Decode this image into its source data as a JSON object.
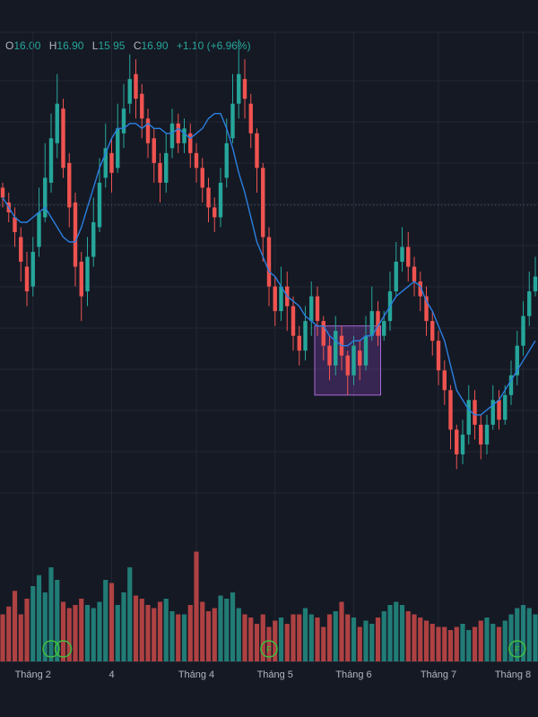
{
  "ohlc": {
    "open_label": "O",
    "open": "16.00",
    "high_label": "H",
    "high": "16.90",
    "low_label": "L",
    "low": "15.95",
    "close_label": "C",
    "close": "16.90",
    "change": "+1.10 (+6.96%)"
  },
  "colors": {
    "background": "#151924",
    "grid": "#232733",
    "up": "#26a69a",
    "down": "#ef5350",
    "ma": "#2a7fe0",
    "highlight_fill": "#7b3fa8",
    "highlight_border": "#a86ad6",
    "marker": "#3fbf3f",
    "axis_text": "#b2b5be"
  },
  "chart_data": {
    "type": "candlestick",
    "price_range": [
      10.6,
      20.4
    ],
    "volume_range": [
      0,
      100
    ],
    "x_ticks": [
      {
        "index": 5,
        "label": "Tháng 2"
      },
      {
        "index": 18,
        "label": "4"
      },
      {
        "index": 32,
        "label": "Tháng 4"
      },
      {
        "index": 45,
        "label": "Tháng 5"
      },
      {
        "index": 58,
        "label": "Tháng 6"
      },
      {
        "index": 72,
        "label": "Tháng 7"
      },
      {
        "index": 86,
        "label": "Tháng 8"
      }
    ],
    "markers": [
      {
        "index": 8,
        "label": ""
      },
      {
        "index": 10,
        "label": ""
      },
      {
        "index": 44,
        "label": "F"
      },
      {
        "index": 85,
        "label": "F"
      }
    ],
    "highlight_range": {
      "start_index": 52,
      "end_index": 62,
      "price_low": 12.4,
      "price_high": 13.8
    },
    "ma_series": [
      16.4,
      16.2,
      16.0,
      15.9,
      15.9,
      16.0,
      16.1,
      16.2,
      16.0,
      15.8,
      15.6,
      15.5,
      15.5,
      15.8,
      16.2,
      16.6,
      17.0,
      17.3,
      17.6,
      17.8,
      17.8,
      17.9,
      17.9,
      17.8,
      17.9,
      17.8,
      17.8,
      17.7,
      17.7,
      17.8,
      17.7,
      17.6,
      17.7,
      17.8,
      18.0,
      18.1,
      18.1,
      17.8,
      17.4,
      16.9,
      16.5,
      16.0,
      15.5,
      15.2,
      14.9,
      14.8,
      14.6,
      14.4,
      14.3,
      14.2,
      14.0,
      13.9,
      13.8,
      13.8,
      13.6,
      13.5,
      13.4,
      13.4,
      13.5,
      13.5,
      13.6,
      13.6,
      13.8,
      14.0,
      14.2,
      14.4,
      14.5,
      14.6,
      14.7,
      14.6,
      14.3,
      14.1,
      13.8,
      13.5,
      13.0,
      12.5,
      12.3,
      12.1,
      12.0,
      12.0,
      12.1,
      12.2,
      12.3,
      12.5,
      12.7,
      12.9,
      13.1,
      13.3,
      13.5
    ],
    "candles": [
      [
        16.6,
        16.4,
        16.7,
        16.2
      ],
      [
        16.3,
        16.1,
        16.5,
        15.9
      ],
      [
        16.0,
        15.7,
        16.2,
        15.4
      ],
      [
        15.6,
        15.1,
        15.8,
        14.7
      ],
      [
        15.0,
        14.5,
        15.3,
        14.2
      ],
      [
        14.6,
        15.3,
        15.6,
        14.4
      ],
      [
        15.4,
        16.1,
        16.6,
        15.2
      ],
      [
        16.0,
        16.8,
        17.5,
        15.9
      ],
      [
        16.7,
        17.6,
        18.1,
        16.5
      ],
      [
        17.5,
        18.3,
        18.9,
        17.2
      ],
      [
        18.2,
        17.0,
        18.4,
        16.8
      ],
      [
        17.1,
        16.2,
        17.3,
        15.8
      ],
      [
        16.3,
        15.0,
        16.5,
        14.6
      ],
      [
        15.1,
        14.4,
        15.3,
        13.9
      ],
      [
        14.5,
        15.2,
        15.6,
        14.2
      ],
      [
        15.2,
        15.9,
        16.4,
        15.0
      ],
      [
        15.8,
        16.7,
        17.2,
        15.7
      ],
      [
        16.8,
        17.4,
        17.9,
        16.6
      ],
      [
        17.3,
        16.9,
        17.6,
        16.5
      ],
      [
        17.0,
        17.8,
        18.3,
        16.9
      ],
      [
        17.7,
        18.2,
        18.7,
        17.4
      ],
      [
        18.3,
        18.8,
        19.3,
        18.1
      ],
      [
        18.9,
        18.4,
        19.2,
        18.0
      ],
      [
        18.5,
        18.0,
        18.7,
        17.6
      ],
      [
        18.0,
        17.5,
        18.2,
        17.2
      ],
      [
        17.6,
        17.1,
        17.8,
        16.7
      ],
      [
        17.1,
        16.7,
        17.3,
        16.3
      ],
      [
        16.7,
        17.3,
        17.7,
        16.5
      ],
      [
        17.4,
        17.9,
        18.2,
        17.2
      ],
      [
        17.9,
        17.5,
        18.1,
        17.3
      ],
      [
        17.5,
        17.8,
        18.0,
        17.3
      ],
      [
        17.7,
        17.3,
        17.9,
        17.0
      ],
      [
        17.3,
        17.0,
        17.5,
        16.7
      ],
      [
        17.0,
        16.6,
        17.2,
        16.3
      ],
      [
        16.6,
        16.2,
        16.8,
        15.9
      ],
      [
        16.2,
        16.0,
        16.4,
        15.7
      ],
      [
        16.0,
        16.7,
        17.0,
        15.8
      ],
      [
        16.8,
        17.5,
        18.0,
        16.6
      ],
      [
        17.6,
        18.3,
        18.9,
        17.5
      ],
      [
        18.3,
        18.9,
        19.6,
        18.0
      ],
      [
        18.8,
        18.4,
        19.2,
        18.0
      ],
      [
        18.3,
        17.7,
        18.5,
        17.4
      ],
      [
        17.7,
        17.0,
        17.8,
        16.5
      ],
      [
        17.0,
        15.6,
        17.1,
        15.1
      ],
      [
        15.6,
        14.6,
        15.8,
        14.2
      ],
      [
        14.6,
        14.1,
        14.8,
        13.8
      ],
      [
        14.1,
        14.6,
        15.0,
        13.9
      ],
      [
        14.6,
        14.2,
        14.9,
        13.7
      ],
      [
        14.2,
        13.6,
        14.4,
        13.3
      ],
      [
        13.6,
        13.3,
        13.8,
        13.0
      ],
      [
        13.3,
        13.9,
        14.2,
        13.1
      ],
      [
        13.9,
        14.4,
        14.7,
        13.6
      ],
      [
        14.4,
        13.9,
        14.6,
        13.6
      ],
      [
        13.9,
        13.4,
        14.0,
        13.1
      ],
      [
        13.4,
        13.0,
        13.6,
        12.7
      ],
      [
        13.0,
        13.7,
        14.0,
        12.8
      ],
      [
        13.6,
        13.2,
        13.8,
        12.9
      ],
      [
        13.2,
        12.8,
        13.3,
        12.4
      ],
      [
        12.8,
        13.4,
        13.6,
        12.6
      ],
      [
        13.3,
        13.0,
        13.5,
        12.7
      ],
      [
        13.0,
        13.6,
        14.0,
        12.9
      ],
      [
        13.6,
        14.1,
        14.6,
        13.5
      ],
      [
        14.1,
        13.6,
        14.3,
        13.4
      ],
      [
        13.6,
        13.9,
        14.1,
        13.5
      ],
      [
        13.9,
        14.5,
        14.9,
        13.7
      ],
      [
        14.5,
        15.1,
        15.5,
        14.4
      ],
      [
        15.1,
        15.4,
        15.8,
        14.9
      ],
      [
        15.4,
        15.0,
        15.7,
        14.7
      ],
      [
        15.0,
        14.7,
        15.2,
        14.4
      ],
      [
        14.7,
        14.4,
        14.9,
        14.1
      ],
      [
        14.4,
        13.9,
        14.6,
        13.6
      ],
      [
        13.9,
        13.5,
        14.1,
        13.2
      ],
      [
        13.5,
        12.9,
        13.7,
        12.6
      ],
      [
        12.9,
        12.5,
        13.1,
        12.2
      ],
      [
        12.5,
        11.7,
        12.6,
        11.3
      ],
      [
        11.7,
        11.2,
        11.8,
        10.9
      ],
      [
        11.2,
        11.6,
        11.9,
        11.0
      ],
      [
        11.6,
        12.3,
        12.6,
        11.4
      ],
      [
        12.3,
        11.8,
        12.5,
        11.5
      ],
      [
        11.8,
        11.4,
        12.0,
        11.1
      ],
      [
        11.4,
        11.8,
        12.0,
        11.2
      ],
      [
        11.8,
        12.3,
        12.6,
        11.7
      ],
      [
        12.3,
        11.9,
        12.5,
        11.7
      ],
      [
        11.9,
        12.4,
        12.6,
        11.8
      ],
      [
        12.4,
        12.8,
        13.1,
        12.2
      ],
      [
        12.8,
        13.4,
        13.7,
        12.6
      ],
      [
        13.4,
        14.0,
        14.3,
        13.2
      ],
      [
        14.0,
        14.5,
        14.9,
        13.8
      ],
      [
        14.5,
        14.8,
        15.2,
        14.4
      ]
    ],
    "volumes": [
      30,
      35,
      45,
      30,
      40,
      48,
      55,
      44,
      60,
      52,
      38,
      34,
      36,
      40,
      36,
      34,
      38,
      52,
      50,
      36,
      44,
      60,
      42,
      40,
      36,
      34,
      38,
      40,
      32,
      30,
      30,
      36,
      70,
      38,
      32,
      34,
      42,
      40,
      44,
      34,
      30,
      28,
      24,
      30,
      22,
      26,
      28,
      24,
      30,
      30,
      34,
      30,
      28,
      22,
      30,
      32,
      38,
      30,
      28,
      22,
      26,
      24,
      28,
      32,
      36,
      38,
      36,
      32,
      30,
      28,
      26,
      24,
      22,
      22,
      20,
      22,
      24,
      20,
      22,
      26,
      28,
      24,
      22,
      26,
      30,
      34,
      36,
      34,
      30
    ]
  }
}
